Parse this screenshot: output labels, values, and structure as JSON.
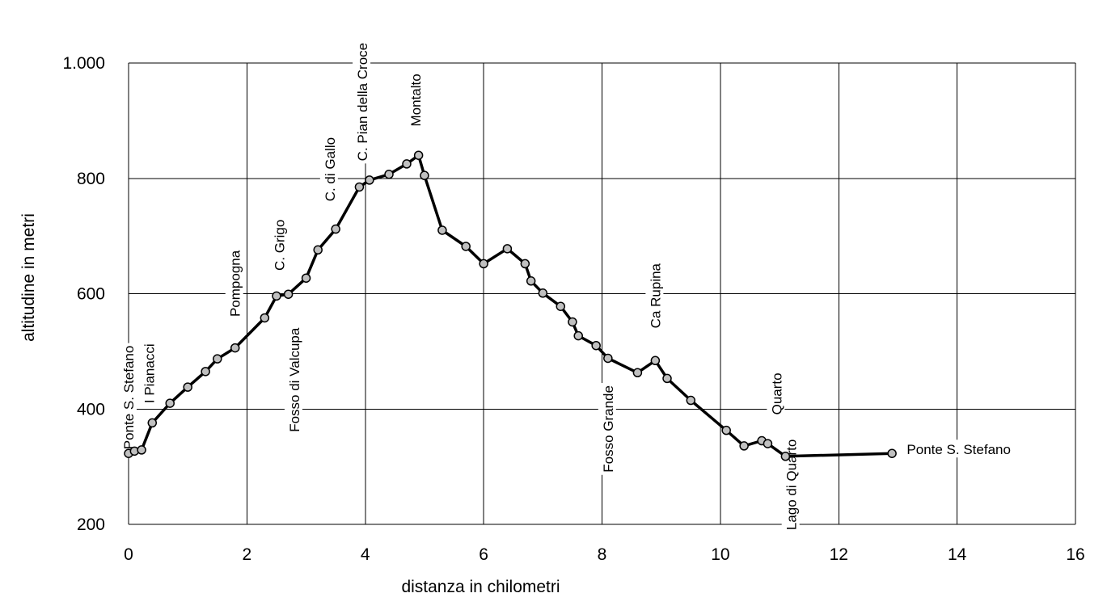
{
  "chart_data": {
    "type": "line",
    "xlabel": "distanza in chilometri",
    "ylabel": "altitudine  in metri",
    "xlim": [
      0,
      16
    ],
    "ylim": [
      200,
      1000
    ],
    "xticks": [
      0,
      2,
      4,
      6,
      8,
      10,
      12,
      14,
      16
    ],
    "xtick_labels": [
      "0",
      "2",
      "4",
      "6",
      "8",
      "10",
      "12",
      "14",
      "16"
    ],
    "yticks": [
      200,
      400,
      600,
      800,
      1000
    ],
    "ytick_labels": [
      "200",
      "400",
      "600",
      "800",
      "1.000"
    ],
    "grid": true,
    "line_color": "#000000",
    "marker_color": "#c0c0c0",
    "series": [
      {
        "x": [
          0,
          0.1,
          0.22,
          0.4,
          0.7,
          1.0,
          1.3,
          1.5,
          1.8,
          2.3,
          2.5,
          2.7,
          3.0,
          3.2,
          3.5,
          3.9,
          4.07,
          4.4,
          4.7,
          4.9,
          5.0,
          5.3,
          5.7,
          6.0,
          6.4,
          6.7,
          6.8,
          7.0,
          7.3,
          7.5,
          7.6,
          7.9,
          8.1,
          8.6,
          8.9,
          9.1,
          9.5,
          10.1,
          10.4,
          10.7,
          10.8,
          11.1,
          12.9
        ],
        "y": [
          323,
          327,
          329,
          376,
          410,
          438,
          465,
          487,
          506,
          558,
          596,
          599,
          627,
          676,
          712,
          785,
          797,
          807,
          825,
          840,
          805,
          710,
          682,
          652,
          678,
          652,
          622,
          601,
          578,
          551,
          527,
          510,
          488,
          463,
          484,
          453,
          415,
          363,
          336,
          345,
          340,
          318,
          323
        ]
      }
    ],
    "annotations": [
      {
        "text": "Ponte S. Stefano",
        "x": 0.0,
        "y": 330
      },
      {
        "text": "I Pianacci",
        "x": 0.35,
        "y": 410
      },
      {
        "text": "Pompogna",
        "x": 1.8,
        "y": 560
      },
      {
        "text": "C. Grigo",
        "x": 2.55,
        "y": 640
      },
      {
        "text": "Fosso di Valcupa",
        "x": 2.8,
        "y": 360
      },
      {
        "text": "C. di Gallo",
        "x": 3.4,
        "y": 760
      },
      {
        "text": "C. Pian della Croce",
        "x": 3.95,
        "y": 830
      },
      {
        "text": "Montalto",
        "x": 4.85,
        "y": 890
      },
      {
        "text": "Fosso Grande",
        "x": 8.1,
        "y": 290
      },
      {
        "text": "Ca Rupina",
        "x": 8.9,
        "y": 540
      },
      {
        "text": "Quarto",
        "x": 10.95,
        "y": 390
      },
      {
        "text": "Lago di Quarto",
        "x": 11.2,
        "y": 190
      },
      {
        "text": "Ponte S. Stefano",
        "x": 13.15,
        "y": 330
      }
    ]
  }
}
